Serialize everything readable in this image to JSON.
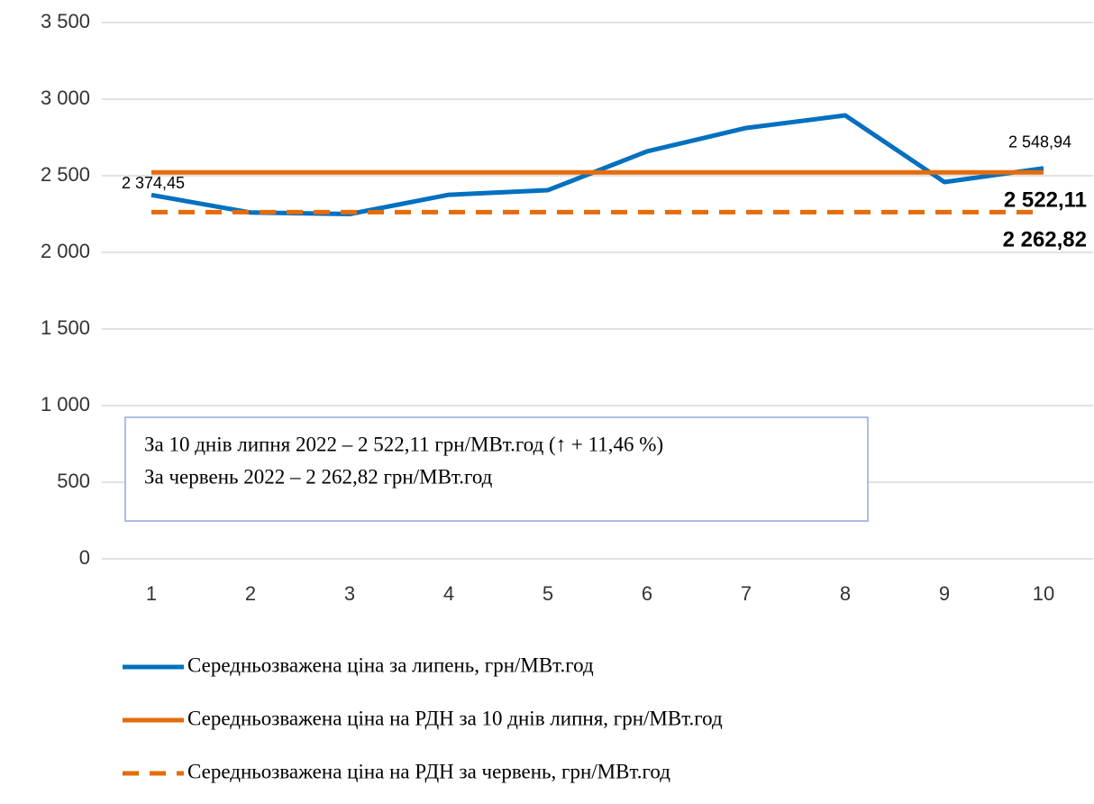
{
  "chart_data": {
    "type": "line",
    "categories": [
      "1",
      "2",
      "3",
      "4",
      "5",
      "6",
      "7",
      "8",
      "9",
      "10"
    ],
    "series": [
      {
        "name": "Середньозважена ціна за липень, грн/МВт.год",
        "color": "#0070c0",
        "line_style": "solid",
        "values": [
          2374.45,
          2260,
          2250,
          2376,
          2406,
          2659,
          2812,
          2894,
          2459,
          2548.94
        ],
        "value_labels": [
          "2 374,45",
          null,
          null,
          null,
          null,
          null,
          null,
          null,
          null,
          "2 548,94"
        ],
        "label_bold": false
      },
      {
        "name": "Середньозважена ціна на РДН за 10 днів липня, грн/МВт.год",
        "color": "#e46c0a",
        "line_style": "solid",
        "values": [
          2522.11,
          2522.11,
          2522.11,
          2522.11,
          2522.11,
          2522.11,
          2522.11,
          2522.11,
          2522.11,
          2522.11
        ],
        "value_labels": [
          null,
          null,
          null,
          null,
          null,
          null,
          null,
          null,
          null,
          "2 522,11"
        ],
        "label_bold": true
      },
      {
        "name": "Середньозважена ціна на РДН за червень, грн/МВт.год",
        "color": "#e46c0a",
        "line_style": "dashed",
        "values": [
          2262.82,
          2262.82,
          2262.82,
          2262.82,
          2262.82,
          2262.82,
          2262.82,
          2262.82,
          2262.82,
          2262.82
        ],
        "value_labels": [
          null,
          null,
          null,
          null,
          null,
          null,
          null,
          null,
          null,
          "2 262,82"
        ],
        "label_bold": true
      }
    ],
    "annotations": [
      "За 10 днів липня 2022 – 2 522,11 грн/МВт.год (↑ + 11,46 %)",
      "За червень 2022 – 2 262,82 грн/МВт.год"
    ],
    "ylim": [
      0,
      3500
    ],
    "yticks": [
      0,
      500,
      {
        "value": 1000,
        "label": "1 000"
      },
      {
        "value": 1500,
        "label": "1 500"
      },
      {
        "value": 2000,
        "label": "2 000"
      },
      {
        "value": 2500,
        "label": "2 500"
      },
      {
        "value": 3000,
        "label": "3 000"
      },
      {
        "value": 3500,
        "label": "3 500"
      }
    ],
    "grid": true
  }
}
